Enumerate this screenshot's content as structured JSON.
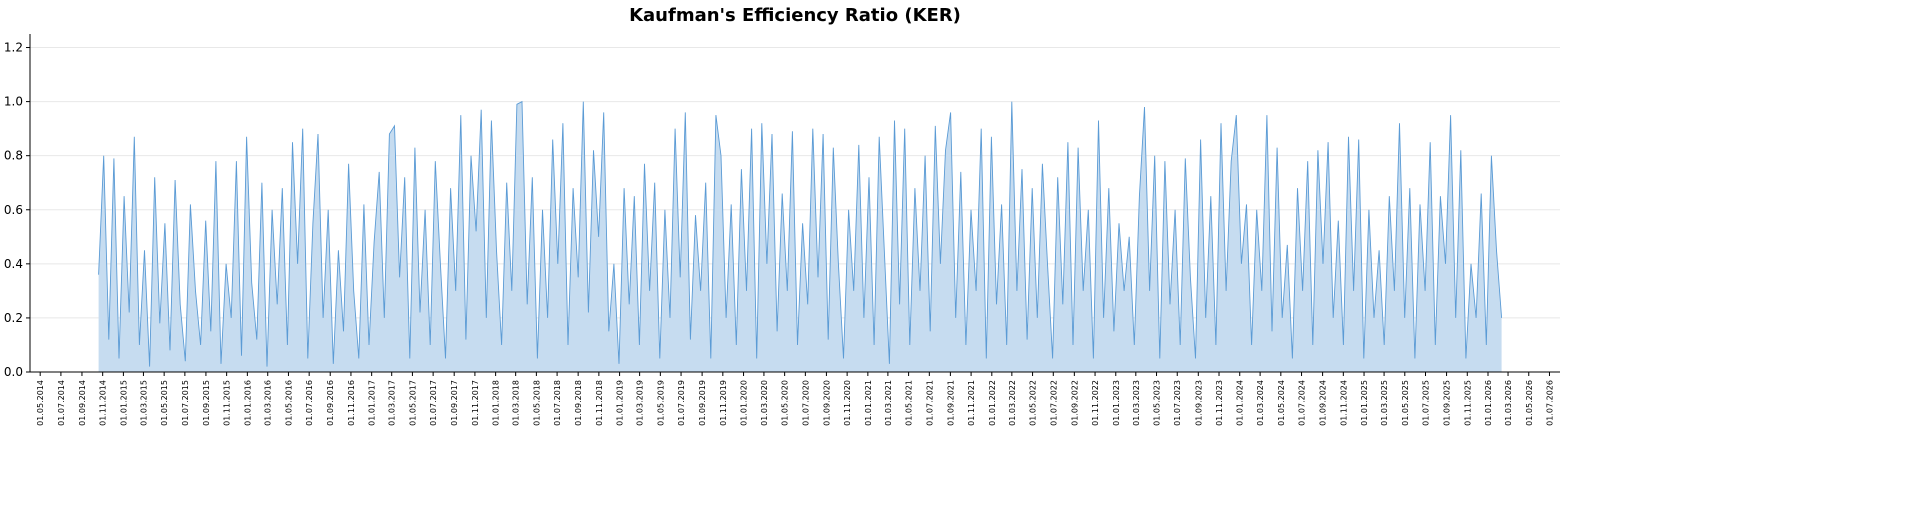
{
  "chart_data": {
    "type": "area",
    "title": "Kaufman's Efficiency Ratio (KER)",
    "xlabel": "",
    "ylabel": "",
    "ylim": [
      0,
      1.25
    ],
    "yticks": [
      "0.0",
      "0.2",
      "0.4",
      "0.6",
      "0.8",
      "1.0",
      "1.2"
    ],
    "xlim": [
      "2014-04-01",
      "2026-08-01"
    ],
    "xticks": [
      "01.05.2014",
      "01.07.2014",
      "01.09.2014",
      "01.11.2014",
      "01.01.2015",
      "01.03.2015",
      "01.05.2015",
      "01.07.2015",
      "01.09.2015",
      "01.11.2015",
      "01.01.2016",
      "01.03.2016",
      "01.05.2016",
      "01.07.2016",
      "01.09.2016",
      "01.11.2016",
      "01.01.2017",
      "01.03.2017",
      "01.05.2017",
      "01.07.2017",
      "01.09.2017",
      "01.11.2017",
      "01.01.2018",
      "01.03.2018",
      "01.05.2018",
      "01.07.2018",
      "01.09.2018",
      "01.11.2018",
      "01.01.2019",
      "01.03.2019",
      "01.05.2019",
      "01.07.2019",
      "01.09.2019",
      "01.11.2019",
      "01.01.2020",
      "01.03.2020",
      "01.05.2020",
      "01.07.2020",
      "01.09.2020",
      "01.11.2020",
      "01.01.2021",
      "01.03.2021",
      "01.05.2021",
      "01.07.2021",
      "01.09.2021",
      "01.11.2021",
      "01.01.2022",
      "01.03.2022",
      "01.05.2022",
      "01.07.2022",
      "01.09.2022",
      "01.11.2022",
      "01.01.2023",
      "01.03.2023",
      "01.05.2023",
      "01.07.2023",
      "01.09.2023",
      "01.11.2023",
      "01.01.2024",
      "01.03.2024",
      "01.05.2024",
      "01.07.2024",
      "01.09.2024",
      "01.11.2024",
      "01.01.2025",
      "01.03.2025",
      "01.05.2025",
      "01.07.2025",
      "01.09.2025",
      "01.11.2025",
      "01.01.2026",
      "01.03.2026",
      "01.05.2026",
      "01.07.2026"
    ],
    "grid": "y",
    "series_start": "2014-10-20",
    "series_end": "2026-02-10",
    "line_color": "#5b9bd5",
    "fill_color": "#c6dcf0",
    "values": [
      0.36,
      0.8,
      0.12,
      0.79,
      0.05,
      0.65,
      0.22,
      0.87,
      0.1,
      0.45,
      0.02,
      0.72,
      0.18,
      0.55,
      0.08,
      0.71,
      0.25,
      0.04,
      0.62,
      0.3,
      0.1,
      0.56,
      0.15,
      0.78,
      0.03,
      0.4,
      0.2,
      0.78,
      0.06,
      0.87,
      0.33,
      0.12,
      0.7,
      0.02,
      0.6,
      0.25,
      0.68,
      0.1,
      0.85,
      0.4,
      0.9,
      0.05,
      0.55,
      0.88,
      0.2,
      0.6,
      0.03,
      0.45,
      0.15,
      0.77,
      0.3,
      0.05,
      0.62,
      0.1,
      0.48,
      0.74,
      0.2,
      0.88,
      0.91,
      0.35,
      0.72,
      0.05,
      0.83,
      0.22,
      0.6,
      0.1,
      0.78,
      0.4,
      0.05,
      0.68,
      0.3,
      0.95,
      0.12,
      0.8,
      0.52,
      0.97,
      0.2,
      0.93,
      0.45,
      0.1,
      0.7,
      0.3,
      0.99,
      1.0,
      0.25,
      0.72,
      0.05,
      0.6,
      0.2,
      0.86,
      0.4,
      0.92,
      0.1,
      0.68,
      0.35,
      1.0,
      0.22,
      0.82,
      0.5,
      0.96,
      0.15,
      0.4,
      0.03,
      0.68,
      0.25,
      0.65,
      0.1,
      0.77,
      0.3,
      0.7,
      0.05,
      0.6,
      0.2,
      0.9,
      0.35,
      0.96,
      0.12,
      0.58,
      0.3,
      0.7,
      0.05,
      0.95,
      0.8,
      0.2,
      0.62,
      0.1,
      0.75,
      0.3,
      0.9,
      0.05,
      0.92,
      0.4,
      0.88,
      0.15,
      0.66,
      0.3,
      0.89,
      0.1,
      0.55,
      0.25,
      0.9,
      0.35,
      0.88,
      0.12,
      0.83,
      0.4,
      0.05,
      0.6,
      0.3,
      0.84,
      0.2,
      0.72,
      0.1,
      0.87,
      0.45,
      0.03,
      0.93,
      0.25,
      0.9,
      0.1,
      0.68,
      0.3,
      0.8,
      0.15,
      0.91,
      0.4,
      0.82,
      0.96,
      0.2,
      0.74,
      0.1,
      0.6,
      0.3,
      0.9,
      0.05,
      0.87,
      0.25,
      0.62,
      0.1,
      1.0,
      0.3,
      0.75,
      0.12,
      0.68,
      0.2,
      0.77,
      0.4,
      0.05,
      0.72,
      0.25,
      0.85,
      0.1,
      0.83,
      0.3,
      0.6,
      0.05,
      0.93,
      0.2,
      0.68,
      0.15,
      0.55,
      0.3,
      0.5,
      0.1,
      0.65,
      0.98,
      0.3,
      0.8,
      0.05,
      0.78,
      0.25,
      0.6,
      0.1,
      0.79,
      0.35,
      0.05,
      0.86,
      0.2,
      0.65,
      0.1,
      0.92,
      0.3,
      0.78,
      0.95,
      0.4,
      0.62,
      0.1,
      0.6,
      0.3,
      0.95,
      0.15,
      0.83,
      0.2,
      0.47,
      0.05,
      0.68,
      0.3,
      0.78,
      0.1,
      0.82,
      0.4,
      0.85,
      0.2,
      0.56,
      0.1,
      0.87,
      0.3,
      0.86,
      0.05,
      0.6,
      0.2,
      0.45,
      0.1,
      0.65,
      0.3,
      0.92,
      0.2,
      0.68,
      0.05,
      0.62,
      0.3,
      0.85,
      0.1,
      0.65,
      0.4,
      0.95,
      0.2,
      0.82,
      0.05,
      0.4,
      0.2,
      0.66,
      0.1,
      0.8,
      0.45,
      0.2
    ]
  }
}
